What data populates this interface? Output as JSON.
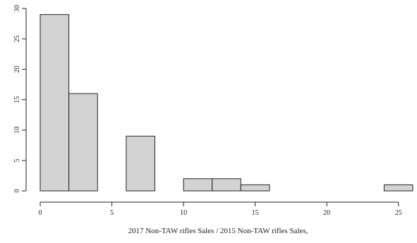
{
  "chart_data": {
    "type": "bar",
    "subtype": "histogram",
    "title": "",
    "xlabel": "2017 Non-TAW rifles Sales / 2015 Non-TAW rifles Sales,",
    "ylabel": "",
    "bins": [
      {
        "x0": 0,
        "x1": 2,
        "count": 29
      },
      {
        "x0": 2,
        "x1": 4,
        "count": 16
      },
      {
        "x0": 4,
        "x1": 6,
        "count": 0
      },
      {
        "x0": 6,
        "x1": 8,
        "count": 9
      },
      {
        "x0": 8,
        "x1": 10,
        "count": 0
      },
      {
        "x0": 10,
        "x1": 12,
        "count": 2
      },
      {
        "x0": 12,
        "x1": 14,
        "count": 2
      },
      {
        "x0": 14,
        "x1": 16,
        "count": 1
      },
      {
        "x0": 16,
        "x1": 18,
        "count": 0
      },
      {
        "x0": 18,
        "x1": 20,
        "count": 0
      },
      {
        "x0": 20,
        "x1": 22,
        "count": 0
      },
      {
        "x0": 22,
        "x1": 24,
        "count": 0
      },
      {
        "x0": 24,
        "x1": 26,
        "count": 1
      }
    ],
    "xlim": [
      0,
      26
    ],
    "ylim": [
      0,
      30
    ],
    "xticks": [
      0,
      5,
      10,
      15,
      20,
      25
    ],
    "yticks": [
      0,
      5,
      10,
      15,
      20,
      25,
      30
    ],
    "bar_color": "#d3d3d3",
    "grid": false,
    "legend": "none"
  }
}
